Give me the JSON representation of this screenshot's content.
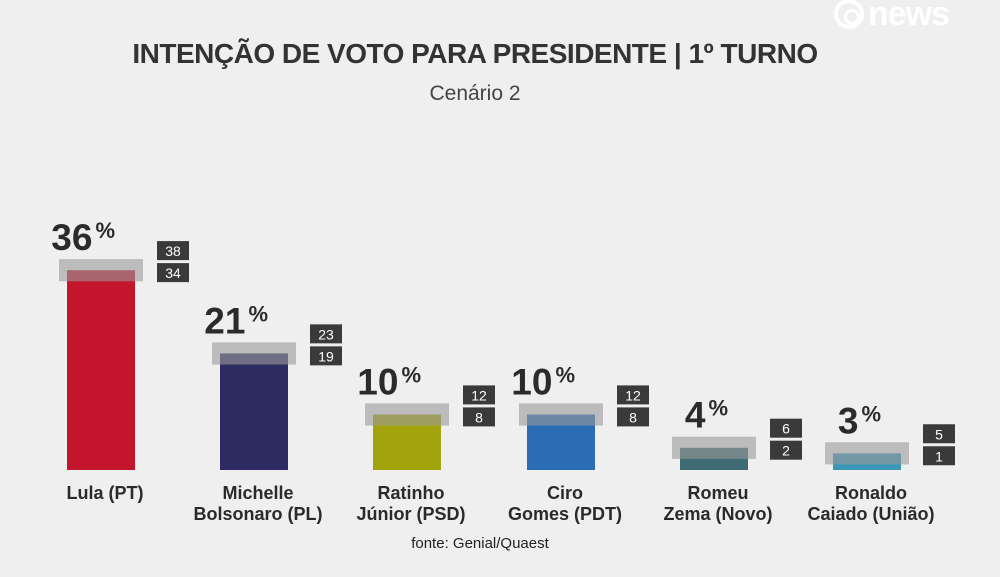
{
  "brand": {
    "name": "news",
    "logo_icon": "globo-logo-icon"
  },
  "chart_data": {
    "type": "bar",
    "title": "INTENÇÃO DE VOTO PARA PRESIDENTE | 1º TURNO",
    "subtitle": "Cenário 2",
    "categories": [
      [
        "Lula (PT)"
      ],
      [
        "Michelle",
        "Bolsonaro (PL)"
      ],
      [
        "Ratinho",
        "Júnior (PSD)"
      ],
      [
        "Ciro",
        "Gomes (PDT)"
      ],
      [
        "Romeu",
        "Zema (Novo)"
      ],
      [
        "Ronaldo",
        "Caiado (União)"
      ]
    ],
    "values": [
      36,
      21,
      10,
      10,
      4,
      3
    ],
    "upper": [
      38,
      23,
      12,
      12,
      6,
      5
    ],
    "lower": [
      34,
      19,
      8,
      8,
      2,
      1
    ],
    "unit": "%",
    "colors": [
      "#c3152c",
      "#2d2b62",
      "#a3a30c",
      "#2a6db4",
      "#3f6b72",
      "#3a97b6"
    ],
    "ylim": [
      0,
      38
    ],
    "grid": false
  },
  "source": "fonte: Genial/Quaest"
}
